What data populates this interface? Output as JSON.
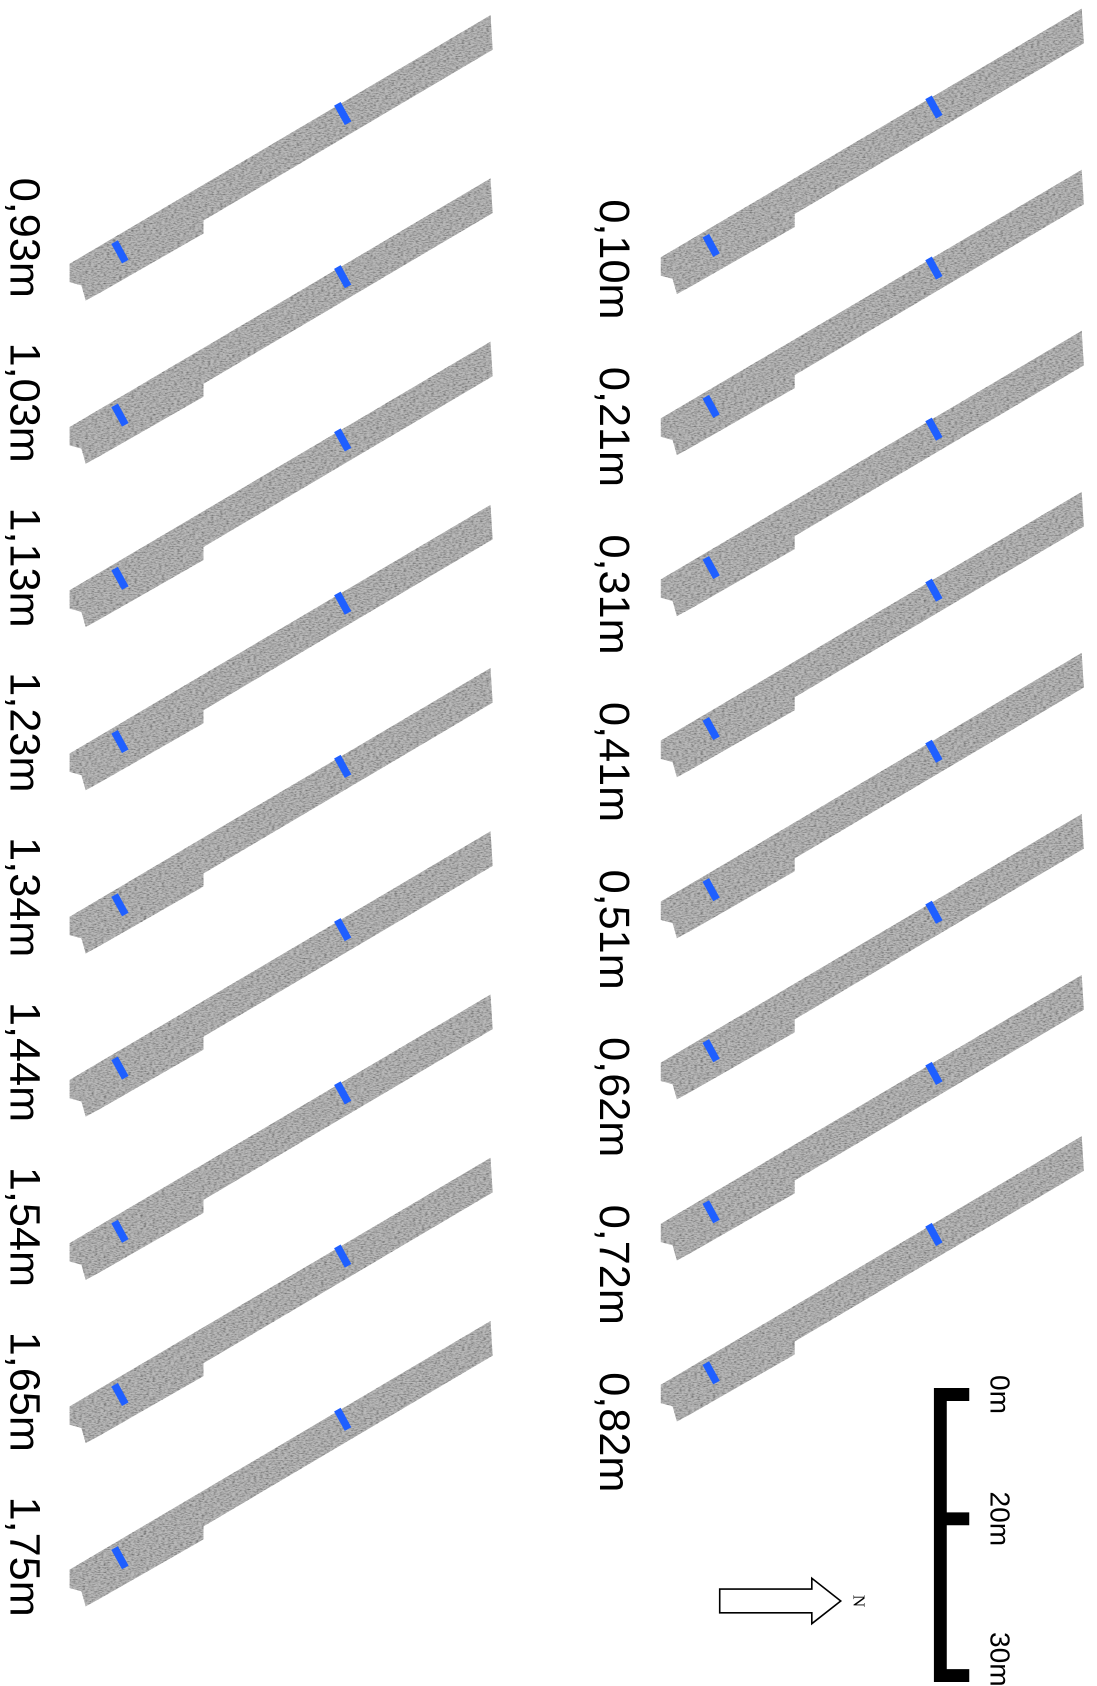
{
  "slices_right": [
    {
      "label": "0,10m"
    },
    {
      "label": "0,21m"
    },
    {
      "label": "0,31m"
    },
    {
      "label": "0,41m"
    },
    {
      "label": "0,51m"
    },
    {
      "label": "0,62m"
    },
    {
      "label": "0,72m"
    },
    {
      "label": "0,82m"
    }
  ],
  "slices_left": [
    {
      "label": "0,93m"
    },
    {
      "label": "1,03m"
    },
    {
      "label": "1,13m"
    },
    {
      "label": "1,23m"
    },
    {
      "label": "1,34m"
    },
    {
      "label": "1,44m"
    },
    {
      "label": "1,54m"
    },
    {
      "label": "1,65m"
    },
    {
      "label": "1,75m"
    }
  ],
  "scale_bar": {
    "labels": [
      "0m",
      "20m",
      "30m"
    ]
  },
  "north_arrow": {
    "label": "N"
  }
}
